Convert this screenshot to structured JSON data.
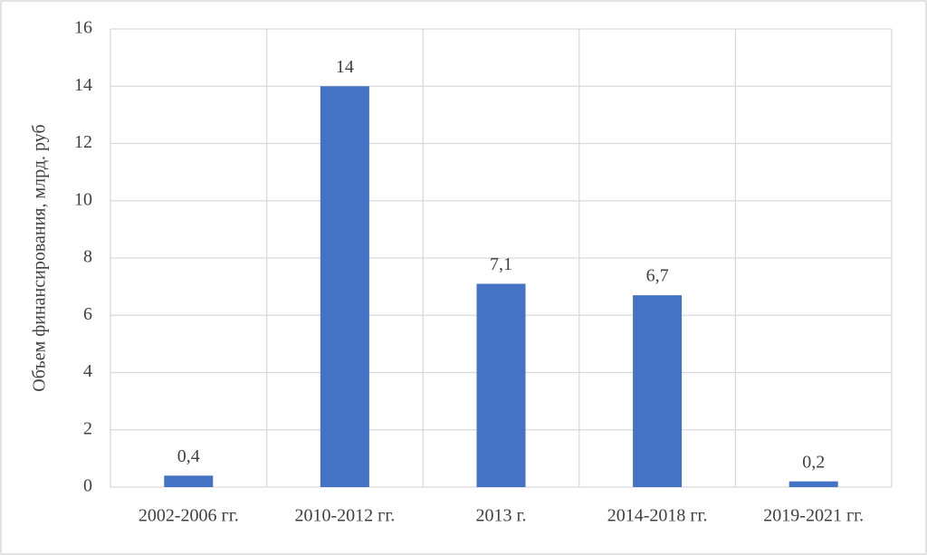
{
  "chart_data": {
    "type": "bar",
    "y_label": "Объем финансирования, млрд. руб",
    "categories": [
      "2002-2006 гг.",
      "2010-2012 гг.",
      "2013 г.",
      "2014-2018 гг.",
      "2019-2021 гг."
    ],
    "values": [
      0.4,
      14,
      7.1,
      6.7,
      0.2
    ],
    "value_labels": [
      "0,4",
      "14",
      "7,1",
      "6,7",
      "0,2"
    ],
    "color": "#4472c4",
    "ylim": [
      0,
      16
    ],
    "yticks": [
      0,
      2,
      4,
      6,
      8,
      10,
      12,
      14,
      16
    ],
    "grid": true
  }
}
